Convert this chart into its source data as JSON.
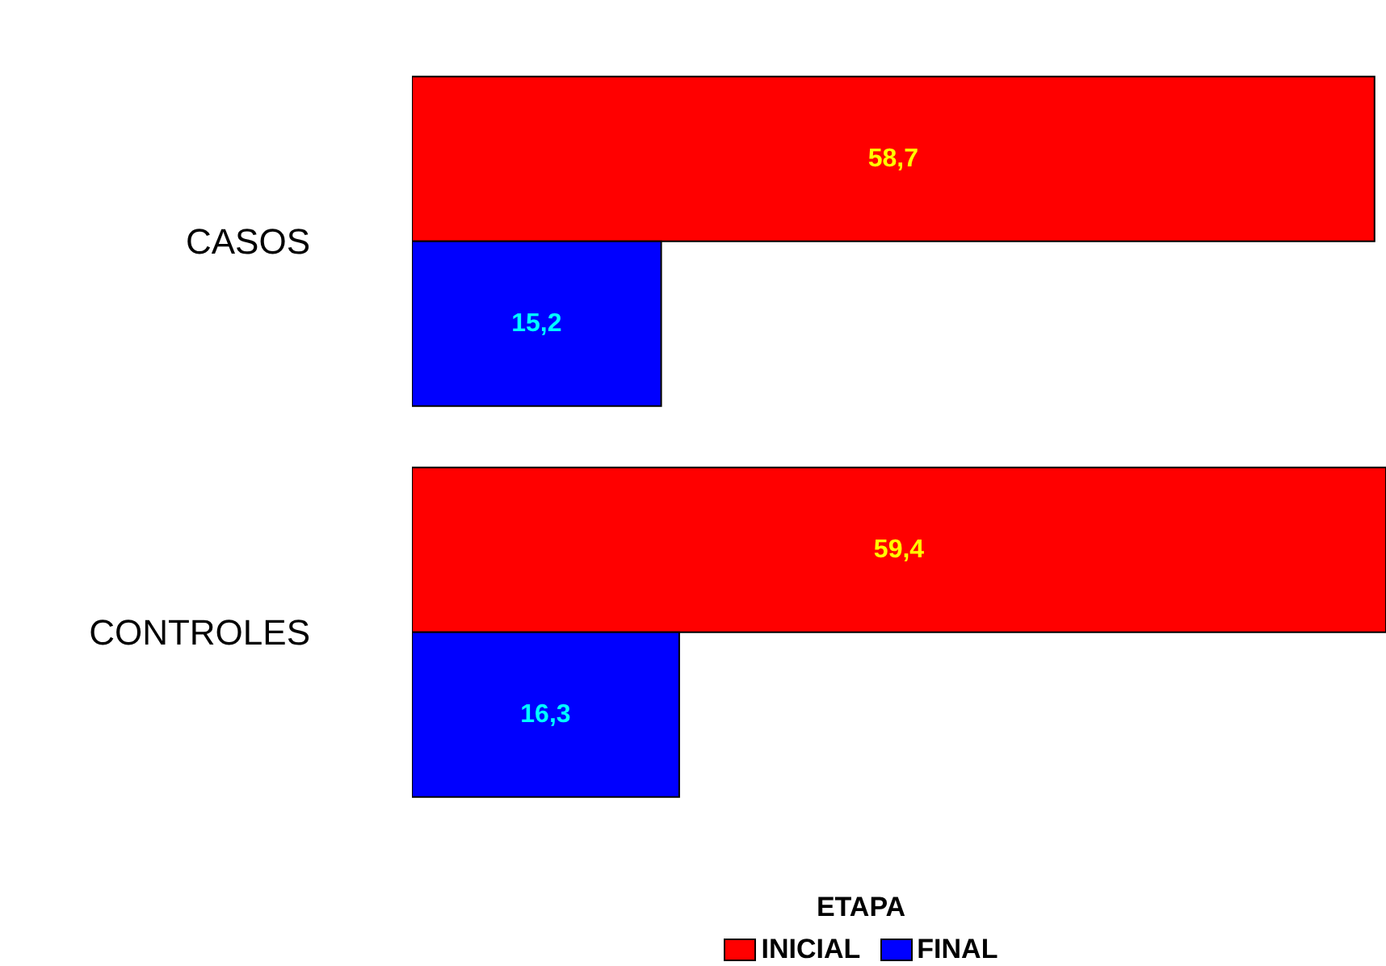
{
  "chart_data": {
    "type": "bar",
    "orientation": "horizontal",
    "categories": [
      "CASOS",
      "CONTROLES"
    ],
    "series": [
      {
        "name": "INICIAL",
        "color": "#ff0000",
        "values": [
          58.7,
          59.4
        ],
        "value_labels": [
          "58,7",
          "59,4"
        ]
      },
      {
        "name": "FINAL",
        "color": "#0000ff",
        "values": [
          15.2,
          16.3
        ],
        "value_labels": [
          "15,2",
          "16,3"
        ]
      }
    ],
    "legend_title": "ETAPA",
    "legend": "bottom",
    "grid": false
  }
}
